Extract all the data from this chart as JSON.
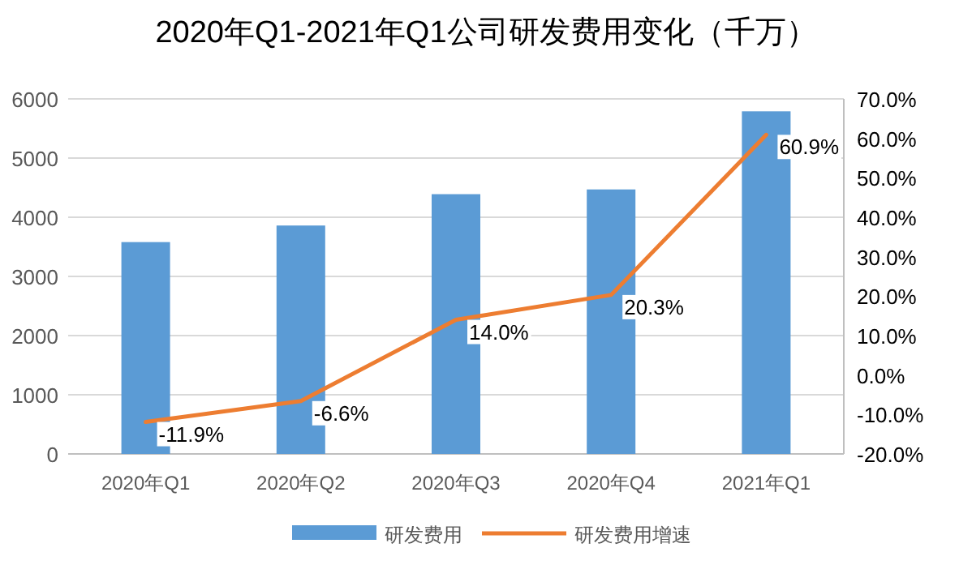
{
  "chart_data": {
    "type": "bar",
    "title": "2020年Q1-2021年Q1公司研发费用变化（千万）",
    "categories": [
      "2020年Q1",
      "2020年Q2",
      "2020年Q3",
      "2020年Q4",
      "2021年Q1"
    ],
    "series": [
      {
        "name": "研发费用",
        "color": "#5b9bd5",
        "values": [
          3580,
          3860,
          4390,
          4470,
          5790
        ]
      },
      {
        "name": "研发费用增速",
        "type": "line",
        "axis": "y2",
        "color": "#ed7d31",
        "values": [
          -11.9,
          -6.6,
          14.0,
          20.3,
          60.9
        ],
        "value_labels": [
          "-11.9%",
          "-6.6%",
          "14.0%",
          "20.3%",
          "60.9%"
        ]
      }
    ],
    "ylim": [
      0,
      6000
    ],
    "yticks": [
      0,
      1000,
      2000,
      3000,
      4000,
      5000,
      6000
    ],
    "y2lim": [
      -20,
      70
    ],
    "y2ticks": [
      {
        "value": -20,
        "label": "-20.0%"
      },
      {
        "value": -10,
        "label": "-10.0%"
      },
      {
        "value": 0,
        "label": "0.0%"
      },
      {
        "value": 10,
        "label": "10.0%"
      },
      {
        "value": 20,
        "label": "20.0%"
      },
      {
        "value": 30,
        "label": "30.0%"
      },
      {
        "value": 40,
        "label": "40.0%"
      },
      {
        "value": 50,
        "label": "50.0%"
      },
      {
        "value": 60,
        "label": "60.0%"
      },
      {
        "value": 70,
        "label": "70.0%"
      }
    ],
    "grid": "y",
    "legend": "bottom",
    "marker": "none"
  }
}
